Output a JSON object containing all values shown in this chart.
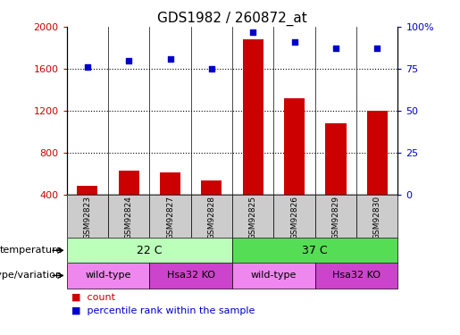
{
  "title": "GDS1982 / 260872_at",
  "samples": [
    "GSM92823",
    "GSM92824",
    "GSM92827",
    "GSM92828",
    "GSM92825",
    "GSM92826",
    "GSM92829",
    "GSM92830"
  ],
  "bar_values": [
    480,
    630,
    610,
    530,
    1880,
    1320,
    1080,
    1200
  ],
  "scatter_values": [
    76,
    80,
    81,
    75,
    97,
    91,
    87,
    87
  ],
  "bar_color": "#cc0000",
  "scatter_color": "#0000cc",
  "ylim_left": [
    400,
    2000
  ],
  "ylim_right": [
    0,
    100
  ],
  "yticks_left": [
    400,
    800,
    1200,
    1600,
    2000
  ],
  "yticks_right": [
    0,
    25,
    50,
    75,
    100
  ],
  "yticklabels_right": [
    "0",
    "25",
    "50",
    "75",
    "100%"
  ],
  "temperature_labels": [
    {
      "label": "22 C",
      "start": 0,
      "end": 4
    },
    {
      "label": "37 C",
      "start": 4,
      "end": 8
    }
  ],
  "genotype_labels": [
    {
      "label": "wild-type",
      "start": 0,
      "end": 2
    },
    {
      "label": "Hsa32 KO",
      "start": 2,
      "end": 4
    },
    {
      "label": "wild-type",
      "start": 4,
      "end": 6
    },
    {
      "label": "Hsa32 KO",
      "start": 6,
      "end": 8
    }
  ],
  "temp_colors": [
    "#bbffbb",
    "#55dd55"
  ],
  "geno_colors_alt": [
    "#ee88ee",
    "#cc44cc"
  ],
  "row_label_temperature": "temperature",
  "row_label_genotype": "genotype/variation",
  "legend_bar_label": "count",
  "legend_scatter_label": "percentile rank within the sample",
  "sample_area_color": "#cccccc",
  "background_color": "#ffffff"
}
